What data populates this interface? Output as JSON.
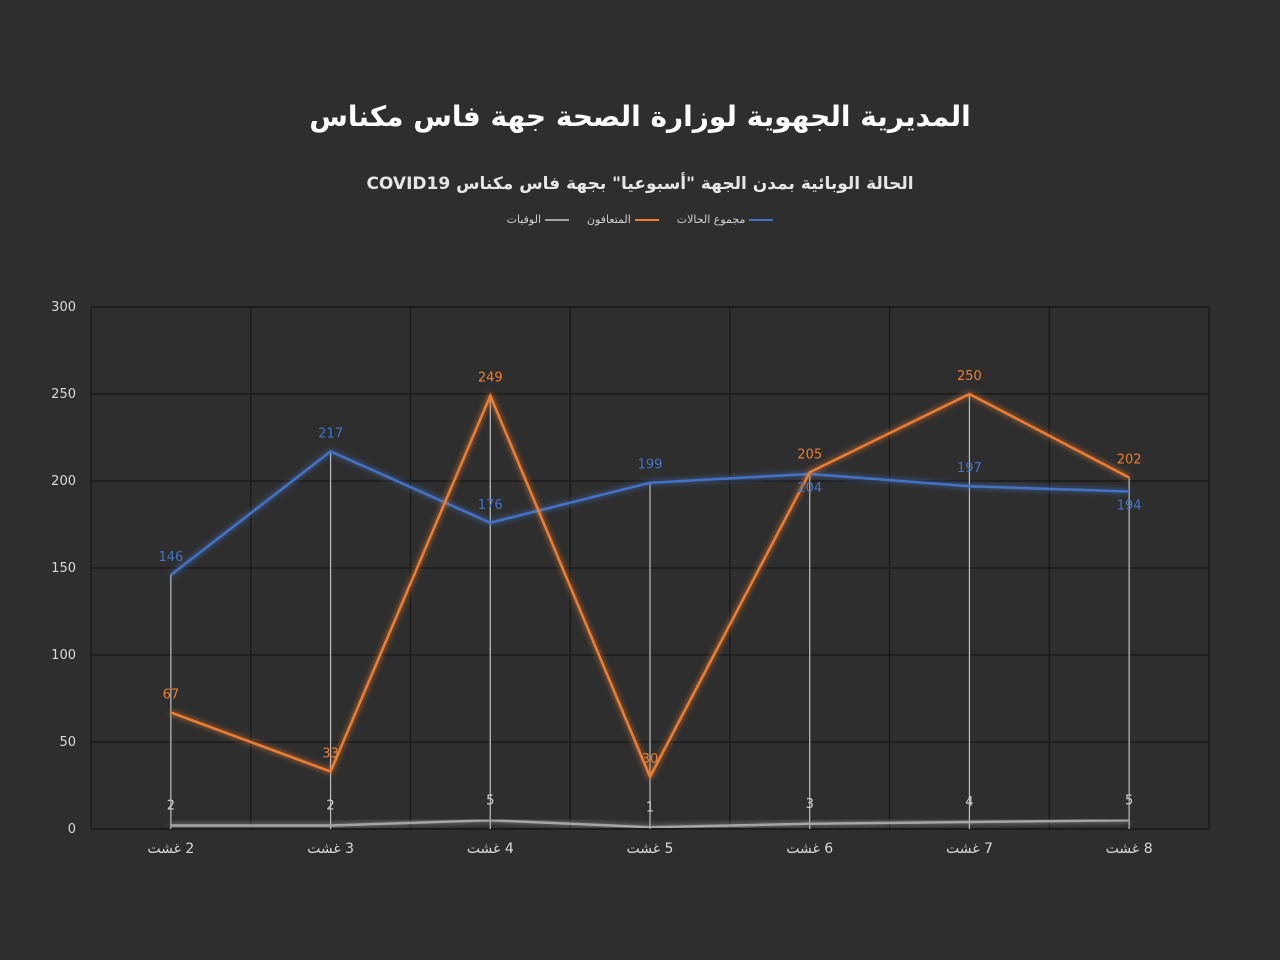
{
  "title": "المديرية الجهوية لوزارة الصحة جهة فاس مكناس",
  "subtitle": "الحالة الوبائية بمدن الجهة \"أسبوعيا\" بجهة فاس مكناس COVID19",
  "colors": {
    "background": "#2e2e2e",
    "total": "#4472c4",
    "recovered": "#ed7d31",
    "deaths": "#a5a5a5",
    "grid": "#1a1a1a",
    "axis_text": "#d9d9d9"
  },
  "chart_data": {
    "type": "line",
    "categories": [
      "2 غشت",
      "3 غشت",
      "4 غشت",
      "5 غشت",
      "6 غشت",
      "7 غشت",
      "8 غشت"
    ],
    "ylim": [
      0,
      300
    ],
    "yticks": [
      0,
      50,
      100,
      150,
      200,
      250,
      300
    ],
    "grid": true,
    "legend_position": "top-center",
    "series": [
      {
        "name": "مجموع الحالات",
        "color": "#4472c4",
        "values": [
          146,
          217,
          176,
          199,
          204,
          197,
          194
        ]
      },
      {
        "name": "المتعافون",
        "color": "#ed7d31",
        "values": [
          67,
          33,
          249,
          30,
          205,
          250,
          202
        ]
      },
      {
        "name": "الوفيات",
        "color": "#a5a5a5",
        "values": [
          2,
          2,
          5,
          1,
          3,
          4,
          5
        ]
      }
    ]
  }
}
